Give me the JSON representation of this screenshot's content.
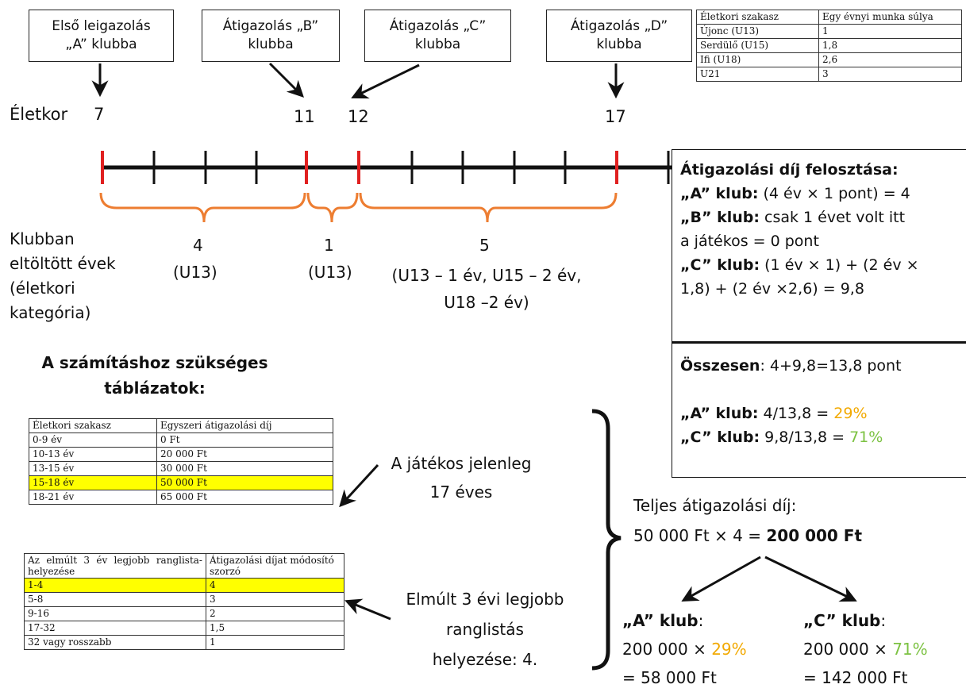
{
  "transfer_boxes": [
    {
      "text": "Első leigazolás\n„A” klubba"
    },
    {
      "text": "Átigazolás „B”\nklubba"
    },
    {
      "text": "Átigazolás „C”\nklubba"
    },
    {
      "text": "Átigazolás „D”\nklubba"
    }
  ],
  "timeline": {
    "age_label": "Életkor",
    "ages": [
      "7",
      "11",
      "12",
      "17"
    ]
  },
  "years": {
    "label": "Klubban\neltöltött évek\n(életkori\nkategória)",
    "a_count": "4",
    "a_cat": "(U13)",
    "b_count": "1",
    "b_cat": "(U13)",
    "c_count": "5",
    "c_cat": "(U13 – 1 év, U15 – 2 év,\nU18 –2 év)"
  },
  "weight_table": {
    "header": [
      "Életkori szakasz",
      "Egy évnyi munka súlya"
    ],
    "rows": [
      [
        "Újonc (U13)",
        "1"
      ],
      [
        "Serdülő (U15)",
        "1,8"
      ],
      [
        "Ifi (U18)",
        "2,6"
      ],
      [
        "U21",
        "3"
      ]
    ]
  },
  "panel": {
    "title": "Átigazolási díj felosztása:",
    "a_label": "„A” klub:",
    "a_text": " (4 év × 1 pont) = 4",
    "b_label": "„B” klub:",
    "b_text": " csak 1 évet volt itt",
    "b_text2": "a játékos = 0 pont",
    "c_label": "„C” klub:",
    "c_text": " (1 év × 1) + (2 év ×",
    "c_text2": "1,8) + (2 év ×2,6) = 9,8",
    "total_label": "Összesen",
    "total_text": ": 4+9,8=13,8 pont",
    "sa_label": "„A” klub:",
    "sa_text": " 4/13,8 = ",
    "sa_pct": "29%",
    "sc_label": "„C” klub:",
    "sc_text": " 9,8/13,8 = ",
    "sc_pct": "71%"
  },
  "tables_title": "A számításhoz szükséges\ntáblázatok:",
  "fee_table": {
    "header": [
      "Életkori szakasz",
      "Egyszeri átigazolási díj"
    ],
    "rows": [
      [
        "0-9 év",
        "0 Ft"
      ],
      [
        "10-13 év",
        "20 000 Ft"
      ],
      [
        "13-15 év",
        "30 000 Ft"
      ],
      [
        "15-18 év",
        "50 000 Ft"
      ],
      [
        "18-21 év",
        "65 000 Ft"
      ]
    ],
    "highlight_index": 3
  },
  "rank_table": {
    "header": [
      "Az elmúlt 3 év legjobb ranglista-helyezése",
      "Átigazolási díjat módosító szorzó"
    ],
    "rows": [
      [
        "1-4",
        "4"
      ],
      [
        "5-8",
        "3"
      ],
      [
        "9-16",
        "2"
      ],
      [
        "17-32",
        "1,5"
      ],
      [
        "32 vagy rosszabb",
        "1"
      ]
    ],
    "highlight_index": 0
  },
  "notes": {
    "age_note": "A játékos jelenleg\n17 éves",
    "rank_note": "Elmúlt 3 évi legjobb\nranglistás\nhelyezése: 4."
  },
  "total_fee": {
    "label": "Teljes átigazolási díj:",
    "formula": "50 000 Ft × 4 = ",
    "amount": "200 000 Ft"
  },
  "split": {
    "a_label": "„A” klub",
    "a_colon": ":",
    "a_formula": "200 000 × ",
    "a_pct": "29%",
    "a_result": "= 58 000 Ft",
    "c_label": "„C” klub",
    "c_colon": ":",
    "c_formula": "200 000 × ",
    "c_pct": "71%",
    "c_result": "= 142 000 Ft"
  },
  "colors": {
    "red_tick": "#e02020",
    "brace": "#ed7d31",
    "orange_pct": "#f2a900",
    "green_pct": "#7cc242",
    "highlight": "#ffff00"
  }
}
